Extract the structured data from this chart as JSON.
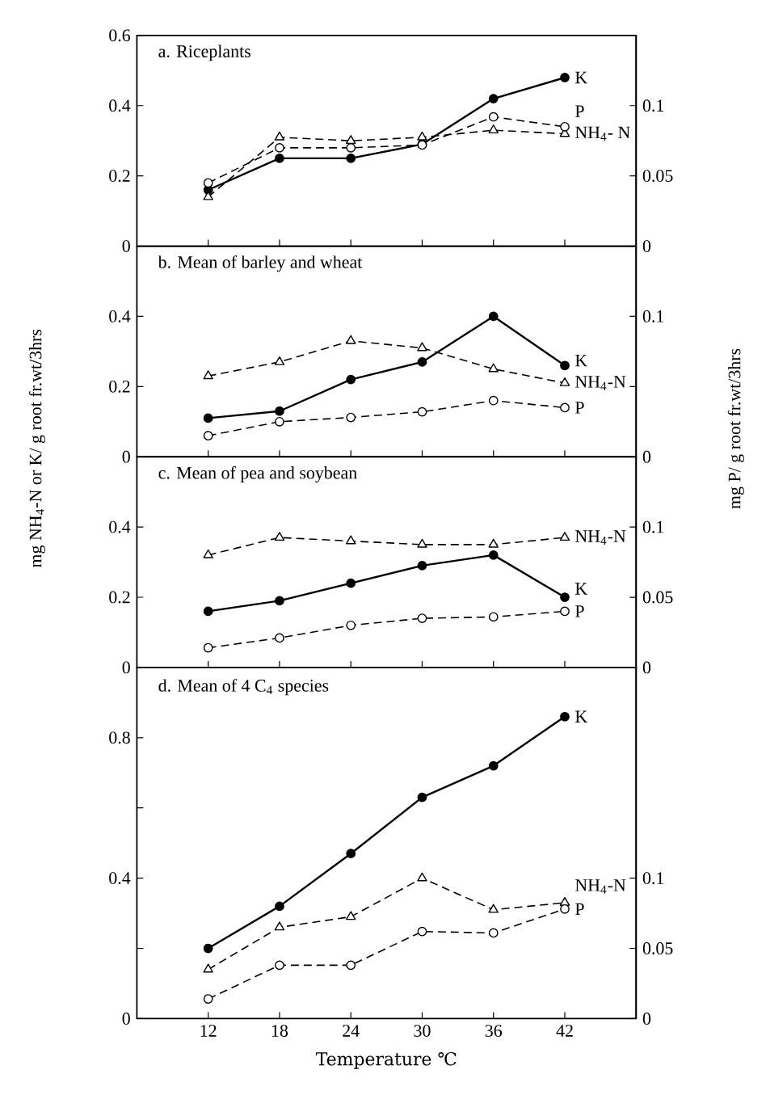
{
  "chart_data": [
    {
      "type": "line",
      "title": "a.  Riceplants",
      "x": [
        12,
        18,
        24,
        30,
        36,
        42
      ],
      "xlim": [
        6,
        48
      ],
      "xticks": [
        12,
        18,
        24,
        30,
        36,
        42
      ],
      "ylim": [
        0,
        0.6
      ],
      "yticks": [
        0,
        0.2,
        0.4,
        0.6
      ],
      "y2lim": [
        0,
        0.15
      ],
      "y2ticks": [
        0,
        0.05,
        0.1
      ],
      "tick_labels": "y",
      "grid": false,
      "legend": false,
      "series": [
        {
          "name": "K",
          "color": "#000000",
          "marker": "circle",
          "line_style": "solid",
          "values": [
            0.16,
            0.25,
            0.25,
            0.29,
            0.42,
            0.48
          ]
        },
        {
          "name": "P",
          "color": "#000000",
          "marker": "circle",
          "line_style": "dashed",
          "axis": "y2",
          "values": [
            0.045,
            0.07,
            0.07,
            0.072,
            0.092,
            0.085
          ]
        },
        {
          "name": "NH$_{4}$- N",
          "color": "#000000",
          "marker": "triangle",
          "line_style": "dashed",
          "values": [
            0.14,
            0.31,
            0.3,
            0.31,
            0.33,
            0.32
          ]
        }
      ]
    },
    {
      "type": "line",
      "title": "b. Mean of barley and wheat",
      "x": [
        12,
        18,
        24,
        30,
        36,
        42
      ],
      "xlim": [
        6,
        48
      ],
      "xticks": [
        12,
        18,
        24,
        30,
        36,
        42
      ],
      "ylim": [
        0,
        0.6
      ],
      "yticks": [
        0,
        0.2,
        0.4
      ],
      "y2lim": [
        0,
        0.15
      ],
      "y2ticks": [
        0,
        {
          "value": 0.05,
          "label": null
        },
        0.1
      ],
      "tick_labels": "y",
      "grid": false,
      "legend": false,
      "series": [
        {
          "name": "K",
          "color": "#000000",
          "marker": "circle",
          "line_style": "solid",
          "values": [
            0.11,
            0.13,
            0.22,
            0.27,
            0.4,
            0.26
          ]
        },
        {
          "name": "P",
          "color": "#000000",
          "marker": "circle",
          "line_style": "dashed",
          "axis": "y2",
          "values": [
            0.015,
            0.025,
            0.028,
            0.032,
            0.04,
            0.035
          ]
        },
        {
          "name": "NH$_{4}$-N",
          "color": "#000000",
          "marker": "triangle",
          "line_style": "dashed",
          "values": [
            0.23,
            0.27,
            0.33,
            0.31,
            0.25,
            0.21
          ]
        }
      ]
    },
    {
      "type": "line",
      "title": "c. Mean of pea and soybean",
      "ylabel": "mg NH$_{4}$-N or K/ g root fr.wt/3hrs",
      "y2label": "mg P/ g root fr.wt/3hrs",
      "x": [
        12,
        18,
        24,
        30,
        36,
        42
      ],
      "xlim": [
        6,
        48
      ],
      "xticks": [
        12,
        18,
        24,
        30,
        36,
        42
      ],
      "ylim": [
        0,
        0.6
      ],
      "yticks": [
        0,
        0.2,
        0.4
      ],
      "y2lim": [
        0,
        0.15
      ],
      "y2ticks": [
        0,
        0.05,
        0.1
      ],
      "tick_labels": "y",
      "grid": false,
      "legend": false,
      "series": [
        {
          "name": "K",
          "color": "#000000",
          "marker": "circle",
          "line_style": "solid",
          "values": [
            0.16,
            0.19,
            0.24,
            0.29,
            0.32,
            0.2
          ]
        },
        {
          "name": "P",
          "color": "#000000",
          "marker": "circle",
          "line_style": "dashed",
          "axis": "y2",
          "values": [
            0.014,
            0.021,
            0.03,
            0.035,
            0.036,
            0.04
          ]
        },
        {
          "name": "NH$_{4}$-N",
          "color": "#000000",
          "marker": "triangle",
          "line_style": "dashed",
          "values": [
            0.32,
            0.37,
            0.36,
            0.35,
            0.35,
            0.37
          ]
        }
      ]
    },
    {
      "type": "line",
      "title": "d. Mean of 4 C$_{4}$ species",
      "xlabel": "Temperature ℃",
      "x": [
        12,
        18,
        24,
        30,
        36,
        42
      ],
      "xlim": [
        6,
        48
      ],
      "xticks": [
        12,
        18,
        24,
        30,
        36,
        42
      ],
      "ylim": [
        0,
        1.0
      ],
      "yticks": [
        0,
        {
          "value": 0.2,
          "label": null
        },
        0.4,
        {
          "value": 0.6,
          "label": null
        },
        0.8
      ],
      "y2lim": [
        0,
        0.25
      ],
      "y2ticks": [
        0,
        0.05,
        0.1
      ],
      "grid": false,
      "legend": false,
      "series": [
        {
          "name": "K",
          "color": "#000000",
          "marker": "circle",
          "line_style": "solid",
          "values": [
            0.2,
            0.32,
            0.47,
            0.63,
            0.72,
            0.86
          ]
        },
        {
          "name": "P",
          "color": "#000000",
          "marker": "circle",
          "line_style": "dashed",
          "axis": "y2",
          "values": [
            0.014,
            0.038,
            0.038,
            0.062,
            0.061,
            0.078
          ]
        },
        {
          "name": "NH$_{4}$-N",
          "color": "#000000",
          "marker": "triangle",
          "line_style": "dashed",
          "values": [
            0.14,
            0.26,
            0.29,
            0.4,
            0.31,
            0.33
          ]
        }
      ]
    }
  ]
}
